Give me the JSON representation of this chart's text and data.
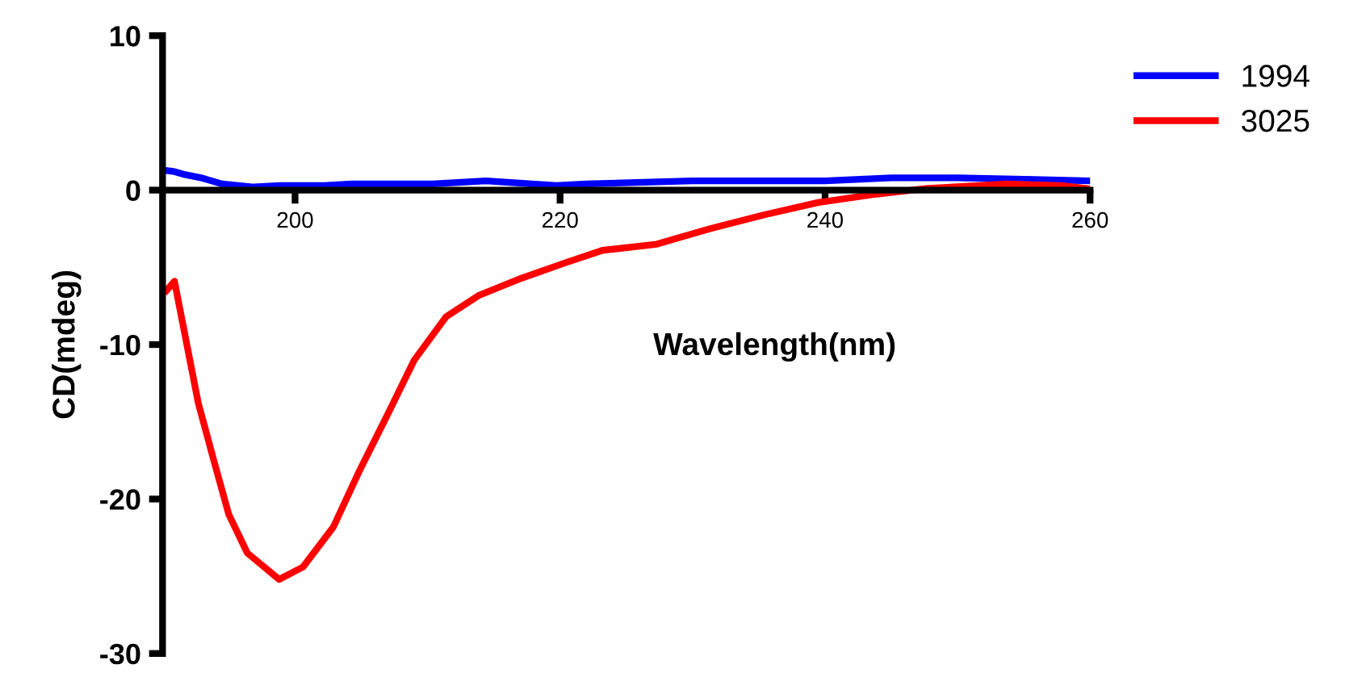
{
  "chart_data": {
    "type": "line",
    "xlabel": "Wavelength(nm)",
    "ylabel": "CD(mdeg)",
    "xlim": [
      190,
      260
    ],
    "xticks": [
      200,
      220,
      240,
      260
    ],
    "ylim": [
      -30,
      10
    ],
    "yticks": [
      -30,
      -20,
      -10,
      0,
      10
    ],
    "grid": false,
    "legend": "top right",
    "marker": "none",
    "line_style": "solid",
    "series": [
      {
        "name": "1994",
        "color": "#0000ff",
        "x": [
          190,
          190.9,
          191.7,
          192.9,
          194.5,
          196.9,
          198.9,
          202.2,
          204.3,
          210.4,
          214.4,
          219.7,
          222,
          230,
          240,
          245,
          250,
          255,
          260
        ],
        "values": [
          1.3,
          1.2,
          1.0,
          0.8,
          0.4,
          0.2,
          0.3,
          0.3,
          0.4,
          0.4,
          0.6,
          0.3,
          0.4,
          0.6,
          0.6,
          0.8,
          0.8,
          0.7,
          0.6
        ]
      },
      {
        "name": "3025",
        "color": "#ff0000",
        "x": [
          190.3,
          190.9,
          192.7,
          193.9,
          195.0,
          196.4,
          198.8,
          200.6,
          202.9,
          204.9,
          207.0,
          209.0,
          211.4,
          213.9,
          217.1,
          220.4,
          223.2,
          227.3,
          231.3,
          235.4,
          239.5,
          243.5,
          247.6,
          253.7,
          257.8,
          259.8
        ],
        "values": [
          -6.5,
          -5.9,
          -13.8,
          -17.6,
          -21.0,
          -23.5,
          -25.2,
          -24.4,
          -21.8,
          -18.1,
          -14.5,
          -11.0,
          -8.2,
          -6.8,
          -5.7,
          -4.7,
          -3.9,
          -3.5,
          -2.5,
          -1.6,
          -0.8,
          -0.3,
          0.1,
          0.4,
          0.3,
          0.1
        ]
      }
    ]
  }
}
